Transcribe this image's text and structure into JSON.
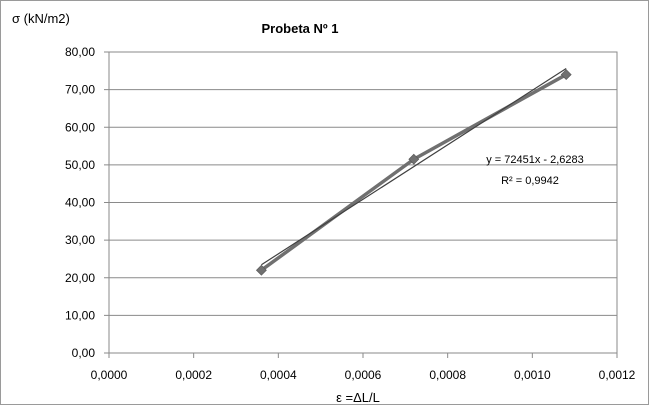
{
  "chart_data": {
    "type": "scatter",
    "title": "Probeta Nº 1",
    "ylabel": "σ (kN/m2)",
    "xlabel": "ε =ΔL/L",
    "xlim": [
      0,
      0.0012
    ],
    "ylim": [
      0,
      80
    ],
    "x_ticks": [
      "0,0000",
      "0,0002",
      "0,0004",
      "0,0006",
      "0,0008",
      "0,0010",
      "0,0012"
    ],
    "y_ticks": [
      "0,00",
      "10,00",
      "20,00",
      "30,00",
      "40,00",
      "50,00",
      "60,00",
      "70,00",
      "80,00"
    ],
    "grid": "horizontal",
    "series": [
      {
        "x": [
          0.00036,
          0.00072,
          0.00108
        ],
        "y": [
          22.0,
          51.5,
          74.0
        ],
        "color": "#707070",
        "marker": "diamond",
        "connected": true
      }
    ],
    "trendline": {
      "kind": "linear",
      "slope": 72451,
      "intercept": -2.6283,
      "x_range": [
        0.00036,
        0.00108
      ],
      "equation": "y = 72451x - 2,6283",
      "r2_label": "R² = 0,9942",
      "color": "#404040"
    }
  }
}
